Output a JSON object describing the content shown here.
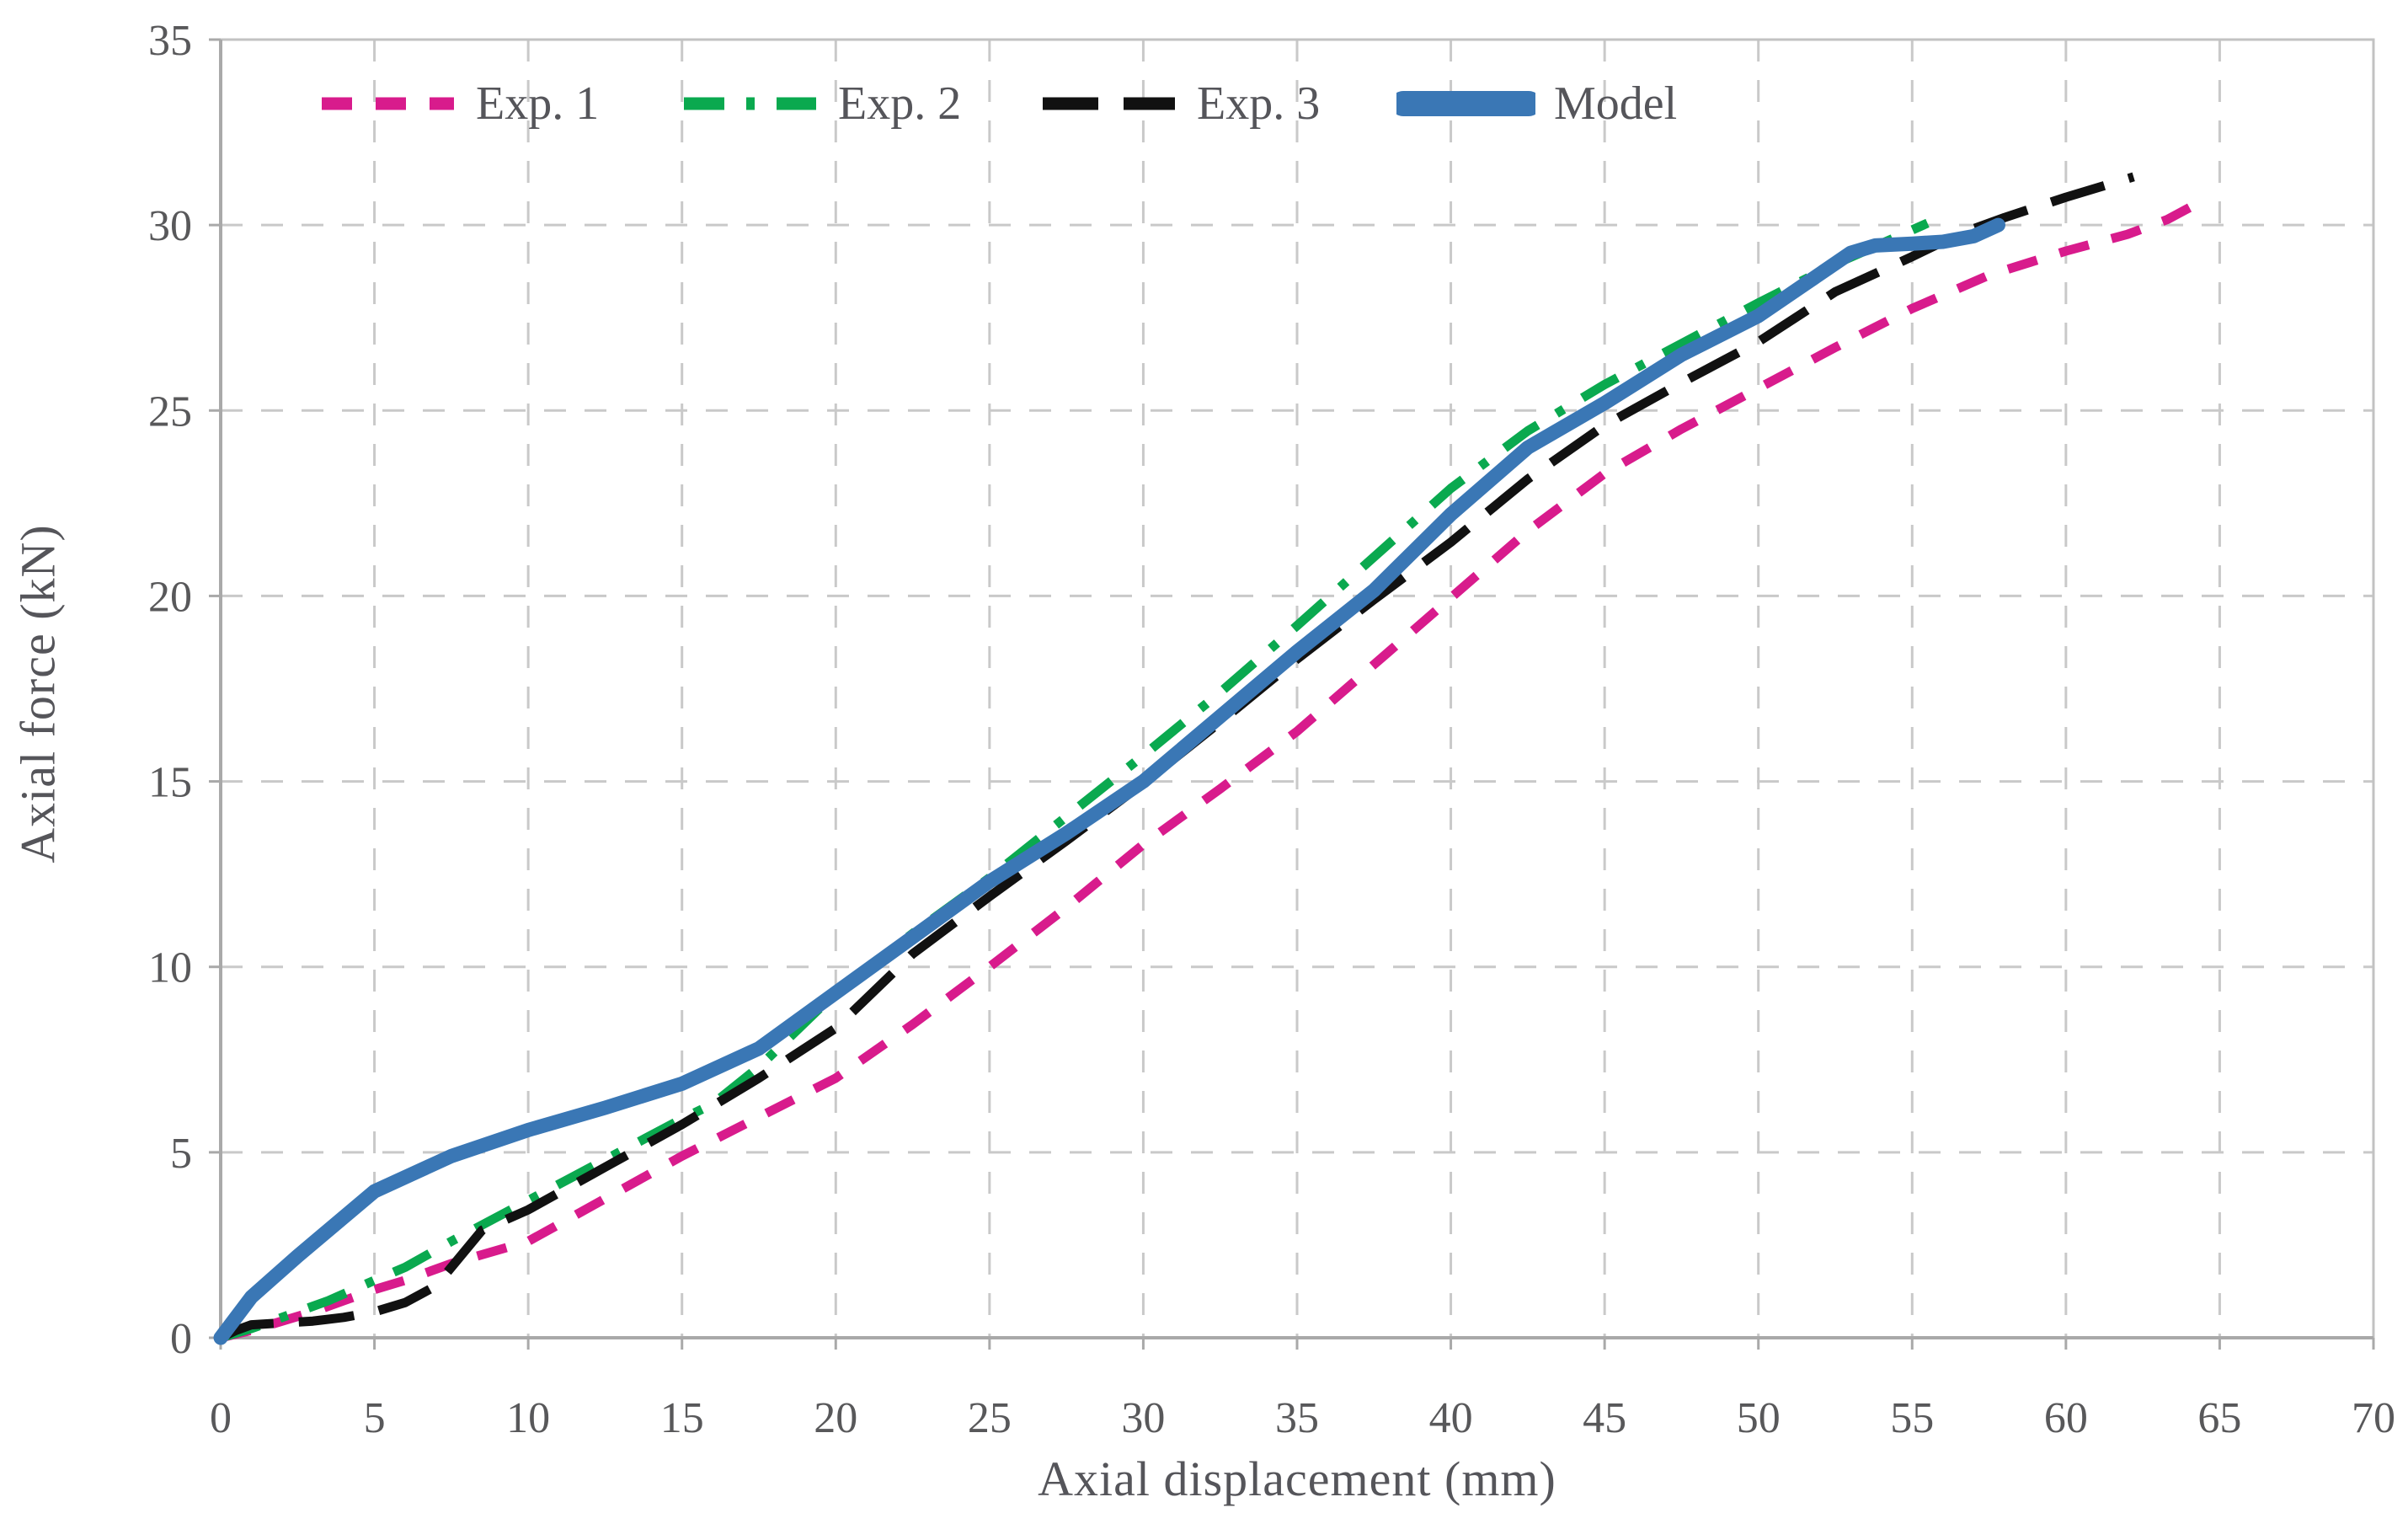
{
  "figure": {
    "type_hint": "scientific line chart"
  },
  "chart_data": {
    "type": "line",
    "title": "",
    "xlabel": "Axial displacement (mm)",
    "ylabel": "Axial force (kN)",
    "xlim": [
      0,
      70
    ],
    "ylim": [
      0,
      35
    ],
    "xticks": [
      0,
      5,
      10,
      15,
      20,
      25,
      30,
      35,
      40,
      45,
      50,
      55,
      60,
      65,
      70
    ],
    "yticks": [
      0,
      5,
      10,
      15,
      20,
      25,
      30,
      35
    ],
    "grid": "dashed",
    "grid_color": "#c9c9c9",
    "axis_color": "#a9a9a9",
    "text_color": "#58585a",
    "legend_position": "top-inside",
    "series": [
      {
        "name": "Exp. 1",
        "color": "#d81b8c",
        "style": "dashed",
        "width": 11,
        "points": [
          [
            0,
            0
          ],
          [
            1,
            0.2
          ],
          [
            2,
            0.45
          ],
          [
            3,
            0.7
          ],
          [
            4,
            1.0
          ],
          [
            5,
            1.3
          ],
          [
            6,
            1.55
          ],
          [
            7.5,
            2.0
          ],
          [
            10,
            2.6
          ],
          [
            12.5,
            3.75
          ],
          [
            15,
            4.9
          ],
          [
            17.5,
            5.95
          ],
          [
            20,
            7.0
          ],
          [
            22.5,
            8.45
          ],
          [
            25,
            10.0
          ],
          [
            27.5,
            11.6
          ],
          [
            30,
            13.3
          ],
          [
            32.5,
            14.8
          ],
          [
            35,
            16.35
          ],
          [
            37.5,
            18.15
          ],
          [
            40,
            19.95
          ],
          [
            42.5,
            21.75
          ],
          [
            45,
            23.3
          ],
          [
            47.5,
            24.5
          ],
          [
            50,
            25.6
          ],
          [
            52.5,
            26.7
          ],
          [
            55,
            27.75
          ],
          [
            57.5,
            28.65
          ],
          [
            60,
            29.3
          ],
          [
            62,
            29.75
          ],
          [
            63.3,
            30.15
          ],
          [
            64.2,
            30.55
          ]
        ]
      },
      {
        "name": "Exp. 2",
        "color": "#0aa94f",
        "style": "dash-dot",
        "width": 11,
        "points": [
          [
            0,
            0
          ],
          [
            1,
            0.25
          ],
          [
            2,
            0.55
          ],
          [
            3.5,
            1.0
          ],
          [
            5,
            1.55
          ],
          [
            6,
            1.9
          ],
          [
            7.5,
            2.6
          ],
          [
            10,
            3.7
          ],
          [
            12.5,
            4.8
          ],
          [
            15,
            5.9
          ],
          [
            16,
            6.3
          ],
          [
            17.5,
            7.3
          ],
          [
            20,
            9.3
          ],
          [
            22.5,
            10.9
          ],
          [
            25,
            12.4
          ],
          [
            27.5,
            14.05
          ],
          [
            30,
            15.7
          ],
          [
            32.5,
            17.4
          ],
          [
            35,
            19.2
          ],
          [
            37.5,
            21.05
          ],
          [
            40,
            22.9
          ],
          [
            42.5,
            24.45
          ],
          [
            45,
            25.7
          ],
          [
            47.5,
            26.8
          ],
          [
            50,
            27.9
          ],
          [
            52.5,
            28.95
          ],
          [
            54,
            29.5
          ],
          [
            55.5,
            30.05
          ]
        ]
      },
      {
        "name": "Exp. 3",
        "color": "#111111",
        "style": "long-dash",
        "width": 11,
        "points": [
          [
            0,
            0
          ],
          [
            0.5,
            0.2
          ],
          [
            1,
            0.35
          ],
          [
            2,
            0.4
          ],
          [
            3,
            0.45
          ],
          [
            4,
            0.55
          ],
          [
            5,
            0.7
          ],
          [
            6,
            0.95
          ],
          [
            7,
            1.4
          ],
          [
            8.5,
            2.9
          ],
          [
            10,
            3.45
          ],
          [
            12.5,
            4.6
          ],
          [
            15,
            5.75
          ],
          [
            17.5,
            7.0
          ],
          [
            20,
            8.35
          ],
          [
            22.5,
            10.35
          ],
          [
            25,
            11.9
          ],
          [
            27.5,
            13.4
          ],
          [
            30,
            14.95
          ],
          [
            32.5,
            16.6
          ],
          [
            35,
            18.3
          ],
          [
            37.5,
            19.9
          ],
          [
            40,
            21.45
          ],
          [
            42.5,
            23.15
          ],
          [
            45,
            24.6
          ],
          [
            47.5,
            25.75
          ],
          [
            50,
            26.85
          ],
          [
            52.5,
            28.2
          ],
          [
            55,
            29.15
          ],
          [
            56.5,
            29.75
          ],
          [
            58,
            30.2
          ],
          [
            60,
            30.75
          ],
          [
            62.2,
            31.3
          ]
        ]
      },
      {
        "name": "Model",
        "color": "#3a77b5",
        "style": "solid",
        "width": 17,
        "points": [
          [
            0,
            0
          ],
          [
            1,
            1.1
          ],
          [
            2.5,
            2.2
          ],
          [
            5,
            3.95
          ],
          [
            7.5,
            4.9
          ],
          [
            10,
            5.6
          ],
          [
            12.5,
            6.2
          ],
          [
            15,
            6.85
          ],
          [
            17.5,
            7.8
          ],
          [
            20,
            9.3
          ],
          [
            22.5,
            10.8
          ],
          [
            25,
            12.3
          ],
          [
            27.5,
            13.6
          ],
          [
            30,
            15.0
          ],
          [
            32.5,
            16.75
          ],
          [
            35,
            18.5
          ],
          [
            37.5,
            20.15
          ],
          [
            40,
            22.2
          ],
          [
            42.5,
            24.0
          ],
          [
            45,
            25.2
          ],
          [
            47.5,
            26.5
          ],
          [
            50,
            27.55
          ],
          [
            51.5,
            28.4
          ],
          [
            53,
            29.25
          ],
          [
            53.8,
            29.45
          ],
          [
            55,
            29.5
          ],
          [
            56,
            29.55
          ],
          [
            57,
            29.7
          ],
          [
            57.8,
            30.0
          ]
        ]
      }
    ]
  }
}
